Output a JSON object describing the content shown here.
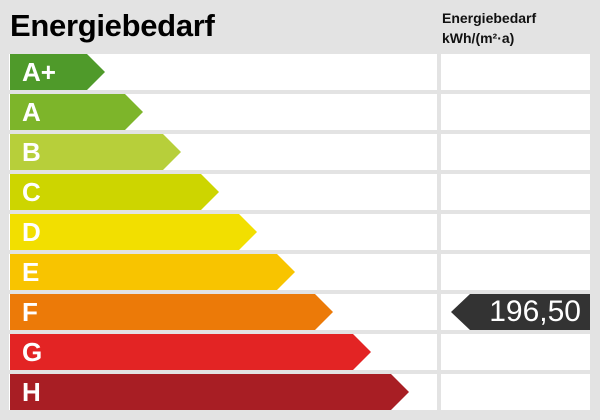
{
  "title": "Energiebedarf",
  "column_header": {
    "line1": "Energiebedarf",
    "line2": "kWh/(m²·a)"
  },
  "classes": [
    {
      "label": "A+",
      "color": "#4f9a2a"
    },
    {
      "label": "A",
      "color": "#7db52a"
    },
    {
      "label": "B",
      "color": "#b7cf3a"
    },
    {
      "label": "C",
      "color": "#cdd500"
    },
    {
      "label": "D",
      "color": "#f2df00"
    },
    {
      "label": "E",
      "color": "#f8c400"
    },
    {
      "label": "F",
      "color": "#ec7a08"
    },
    {
      "label": "G",
      "color": "#e32424"
    },
    {
      "label": "H",
      "color": "#a81e24"
    }
  ],
  "value": {
    "text": "196,50",
    "class": "F"
  }
}
